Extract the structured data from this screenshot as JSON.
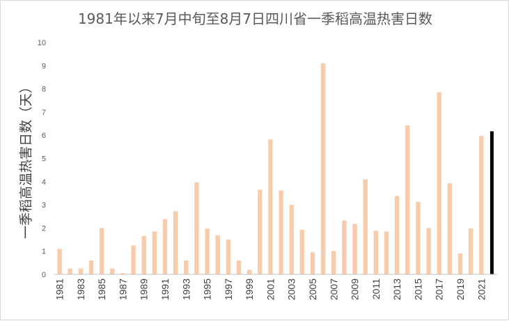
{
  "chart_data": {
    "type": "bar",
    "title": "1981年以来7月中旬至8月7日四川省一季稻高温热害日数",
    "xlabel": "",
    "ylabel": "一季稻高温热害日数（天）",
    "ylim": [
      0,
      10
    ],
    "yticks": [
      0,
      1,
      2,
      3,
      4,
      5,
      6,
      7,
      8,
      9,
      10
    ],
    "grid": false,
    "legend": "none",
    "bar_color": "#f8cbad",
    "highlight_color": "#000000",
    "x_tick_labels": [
      "1981",
      "1983",
      "1985",
      "1987",
      "1989",
      "1991",
      "1993",
      "1995",
      "1997",
      "1999",
      "2001",
      "2003",
      "2005",
      "2007",
      "2009",
      "2011",
      "2013",
      "2015",
      "2017",
      "2019",
      "2021"
    ],
    "categories": [
      "1981",
      "1982",
      "1983",
      "1984",
      "1985",
      "1986",
      "1987",
      "1988",
      "1989",
      "1990",
      "1991",
      "1992",
      "1993",
      "1994",
      "1995",
      "1996",
      "1997",
      "1998",
      "1999",
      "2000",
      "2001",
      "2002",
      "2003",
      "2004",
      "2005",
      "2006",
      "2007",
      "2008",
      "2009",
      "2010",
      "2011",
      "2012",
      "2013",
      "2014",
      "2015",
      "2016",
      "2017",
      "2018",
      "2019",
      "2020",
      "2021",
      "2022"
    ],
    "values": [
      1.1,
      0.25,
      0.25,
      0.6,
      2.0,
      0.25,
      0.05,
      1.25,
      1.65,
      1.85,
      2.38,
      2.72,
      0.6,
      3.97,
      1.97,
      1.68,
      1.5,
      0.6,
      0.2,
      3.65,
      5.82,
      3.62,
      3.0,
      1.92,
      0.95,
      9.1,
      1.0,
      2.32,
      2.18,
      4.1,
      1.88,
      1.85,
      3.38,
      6.42,
      3.12,
      2.0,
      7.85,
      3.93,
      0.9,
      1.98,
      5.97,
      6.17
    ],
    "highlight_index": 41
  }
}
